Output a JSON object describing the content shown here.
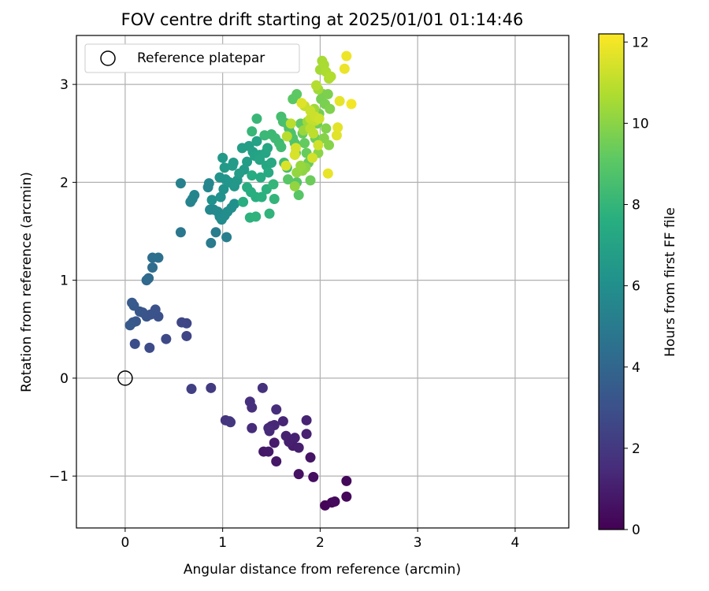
{
  "chart_data": {
    "type": "scatter",
    "title": "FOV centre drift starting at 2025/01/01 01:14:46",
    "xlabel": "Angular distance from reference (arcmin)",
    "ylabel": "Rotation from reference (arcmin)",
    "xlim": [
      -0.5,
      4.55
    ],
    "ylim": [
      -1.53,
      3.5
    ],
    "xticks": [
      0,
      1,
      2,
      3,
      4
    ],
    "xtick_labels": [
      "0",
      "1",
      "2",
      "3",
      "4"
    ],
    "yticks": [
      -1,
      0,
      1,
      2,
      3
    ],
    "ytick_labels": [
      "−1",
      "0",
      "1",
      "2",
      "3"
    ],
    "grid": true,
    "legend": {
      "position": "top-left",
      "entries": [
        "Reference platepar"
      ]
    },
    "reference_point": {
      "x": 0,
      "y": 0,
      "marker": "open-circle"
    },
    "colorbar": {
      "label": "Hours from first FF file",
      "range": [
        0,
        12.2
      ],
      "ticks": [
        0,
        2,
        4,
        6,
        8,
        10,
        12
      ],
      "tick_labels": [
        "0",
        "2",
        "4",
        "6",
        "8",
        "10",
        "12"
      ],
      "colormap": "viridis"
    },
    "points": [
      {
        "x": 2.05,
        "y": -1.3,
        "t": 0.1
      },
      {
        "x": 2.12,
        "y": -1.27,
        "t": 0.2
      },
      {
        "x": 2.15,
        "y": -1.26,
        "t": 0.3
      },
      {
        "x": 2.27,
        "y": -1.21,
        "t": 0.2
      },
      {
        "x": 2.27,
        "y": -1.05,
        "t": 0.25
      },
      {
        "x": 1.93,
        "y": -1.01,
        "t": 0.45
      },
      {
        "x": 1.78,
        "y": -0.98,
        "t": 0.55
      },
      {
        "x": 1.9,
        "y": -0.81,
        "t": 0.65
      },
      {
        "x": 1.55,
        "y": -0.85,
        "t": 0.75
      },
      {
        "x": 1.42,
        "y": -0.75,
        "t": 0.8
      },
      {
        "x": 1.47,
        "y": -0.75,
        "t": 0.85
      },
      {
        "x": 1.53,
        "y": -0.66,
        "t": 0.9
      },
      {
        "x": 1.72,
        "y": -0.69,
        "t": 0.95
      },
      {
        "x": 1.78,
        "y": -0.71,
        "t": 1.0
      },
      {
        "x": 1.68,
        "y": -0.65,
        "t": 1.05
      },
      {
        "x": 1.65,
        "y": -0.59,
        "t": 1.1
      },
      {
        "x": 1.74,
        "y": -0.61,
        "t": 1.12
      },
      {
        "x": 1.86,
        "y": -0.57,
        "t": 1.15
      },
      {
        "x": 1.86,
        "y": -0.43,
        "t": 1.2
      },
      {
        "x": 1.62,
        "y": -0.44,
        "t": 1.25
      },
      {
        "x": 1.5,
        "y": -0.49,
        "t": 1.3
      },
      {
        "x": 1.53,
        "y": -0.48,
        "t": 1.35
      },
      {
        "x": 1.47,
        "y": -0.51,
        "t": 1.4
      },
      {
        "x": 1.48,
        "y": -0.54,
        "t": 1.45
      },
      {
        "x": 1.3,
        "y": -0.51,
        "t": 1.5
      },
      {
        "x": 1.55,
        "y": -0.32,
        "t": 1.55
      },
      {
        "x": 1.28,
        "y": -0.24,
        "t": 1.6
      },
      {
        "x": 1.3,
        "y": -0.3,
        "t": 1.65
      },
      {
        "x": 1.41,
        "y": -0.1,
        "t": 1.7
      },
      {
        "x": 1.03,
        "y": -0.43,
        "t": 1.8
      },
      {
        "x": 1.07,
        "y": -0.44,
        "t": 1.85
      },
      {
        "x": 1.08,
        "y": -0.45,
        "t": 1.9
      },
      {
        "x": 0.88,
        "y": -0.1,
        "t": 2.1
      },
      {
        "x": 0.68,
        "y": -0.11,
        "t": 2.3
      },
      {
        "x": 0.63,
        "y": 0.43,
        "t": 2.5
      },
      {
        "x": 0.63,
        "y": 0.56,
        "t": 2.55
      },
      {
        "x": 0.58,
        "y": 0.57,
        "t": 2.6
      },
      {
        "x": 0.42,
        "y": 0.4,
        "t": 2.7
      },
      {
        "x": 0.25,
        "y": 0.31,
        "t": 2.8
      },
      {
        "x": 0.1,
        "y": 0.35,
        "t": 2.9
      },
      {
        "x": 0.34,
        "y": 0.63,
        "t": 3.0
      },
      {
        "x": 0.31,
        "y": 0.7,
        "t": 3.05
      },
      {
        "x": 0.26,
        "y": 0.65,
        "t": 3.1
      },
      {
        "x": 0.22,
        "y": 0.63,
        "t": 3.15
      },
      {
        "x": 0.18,
        "y": 0.67,
        "t": 3.2
      },
      {
        "x": 0.15,
        "y": 0.68,
        "t": 3.25
      },
      {
        "x": 0.11,
        "y": 0.58,
        "t": 3.3
      },
      {
        "x": 0.08,
        "y": 0.57,
        "t": 3.35
      },
      {
        "x": 0.05,
        "y": 0.54,
        "t": 3.4
      },
      {
        "x": 0.09,
        "y": 0.74,
        "t": 3.45
      },
      {
        "x": 0.07,
        "y": 0.77,
        "t": 3.5
      },
      {
        "x": 0.22,
        "y": 1.0,
        "t": 4.1
      },
      {
        "x": 0.24,
        "y": 1.02,
        "t": 4.2
      },
      {
        "x": 0.28,
        "y": 1.13,
        "t": 4.3
      },
      {
        "x": 0.28,
        "y": 1.23,
        "t": 4.4
      },
      {
        "x": 0.34,
        "y": 1.23,
        "t": 4.5
      },
      {
        "x": 0.57,
        "y": 1.49,
        "t": 4.8
      },
      {
        "x": 0.88,
        "y": 1.38,
        "t": 5.0
      },
      {
        "x": 0.93,
        "y": 1.49,
        "t": 5.1
      },
      {
        "x": 1.04,
        "y": 1.44,
        "t": 5.2
      },
      {
        "x": 0.57,
        "y": 1.99,
        "t": 5.3
      },
      {
        "x": 0.67,
        "y": 1.8,
        "t": 5.4
      },
      {
        "x": 0.69,
        "y": 1.83,
        "t": 5.45
      },
      {
        "x": 0.71,
        "y": 1.87,
        "t": 5.5
      },
      {
        "x": 0.85,
        "y": 1.95,
        "t": 5.55
      },
      {
        "x": 0.86,
        "y": 1.99,
        "t": 5.6
      },
      {
        "x": 0.87,
        "y": 1.72,
        "t": 5.65
      },
      {
        "x": 0.91,
        "y": 1.72,
        "t": 5.7
      },
      {
        "x": 0.95,
        "y": 1.7,
        "t": 5.75
      },
      {
        "x": 0.97,
        "y": 1.65,
        "t": 5.8
      },
      {
        "x": 0.99,
        "y": 1.62,
        "t": 5.85
      },
      {
        "x": 1.02,
        "y": 1.66,
        "t": 5.9
      },
      {
        "x": 1.05,
        "y": 1.7,
        "t": 5.95
      },
      {
        "x": 1.09,
        "y": 1.74,
        "t": 6.0
      },
      {
        "x": 1.12,
        "y": 1.78,
        "t": 6.05
      },
      {
        "x": 0.89,
        "y": 1.82,
        "t": 6.1
      },
      {
        "x": 0.98,
        "y": 1.85,
        "t": 6.15
      },
      {
        "x": 1.01,
        "y": 1.93,
        "t": 6.2
      },
      {
        "x": 0.97,
        "y": 2.05,
        "t": 6.25
      },
      {
        "x": 1.03,
        "y": 2.03,
        "t": 6.3
      },
      {
        "x": 1.07,
        "y": 2.0,
        "t": 6.35
      },
      {
        "x": 1.12,
        "y": 1.96,
        "t": 6.4
      },
      {
        "x": 1.15,
        "y": 2.02,
        "t": 6.45
      },
      {
        "x": 1.0,
        "y": 2.25,
        "t": 6.5
      },
      {
        "x": 1.02,
        "y": 2.15,
        "t": 6.55
      },
      {
        "x": 1.1,
        "y": 2.17,
        "t": 6.6
      },
      {
        "x": 1.11,
        "y": 2.2,
        "t": 6.62
      },
      {
        "x": 1.22,
        "y": 2.13,
        "t": 6.65
      },
      {
        "x": 1.17,
        "y": 2.09,
        "t": 6.7
      },
      {
        "x": 1.25,
        "y": 2.21,
        "t": 6.75
      },
      {
        "x": 1.2,
        "y": 2.35,
        "t": 6.8
      },
      {
        "x": 1.27,
        "y": 2.37,
        "t": 6.85
      },
      {
        "x": 1.31,
        "y": 2.31,
        "t": 6.9
      },
      {
        "x": 1.35,
        "y": 2.42,
        "t": 6.95
      },
      {
        "x": 1.33,
        "y": 2.27,
        "t": 7.0
      },
      {
        "x": 1.38,
        "y": 2.28,
        "t": 7.05
      },
      {
        "x": 1.38,
        "y": 2.23,
        "t": 7.1
      },
      {
        "x": 1.44,
        "y": 2.3,
        "t": 7.15
      },
      {
        "x": 1.46,
        "y": 2.35,
        "t": 7.2
      },
      {
        "x": 1.45,
        "y": 2.17,
        "t": 7.25
      },
      {
        "x": 1.5,
        "y": 2.2,
        "t": 7.3
      },
      {
        "x": 1.47,
        "y": 2.1,
        "t": 7.35
      },
      {
        "x": 1.39,
        "y": 2.05,
        "t": 7.4
      },
      {
        "x": 1.3,
        "y": 2.07,
        "t": 7.45
      },
      {
        "x": 1.25,
        "y": 1.95,
        "t": 7.5
      },
      {
        "x": 1.29,
        "y": 1.9,
        "t": 7.55
      },
      {
        "x": 1.21,
        "y": 1.8,
        "t": 7.6
      },
      {
        "x": 1.34,
        "y": 1.85,
        "t": 7.65
      },
      {
        "x": 1.4,
        "y": 1.85,
        "t": 7.7
      },
      {
        "x": 1.45,
        "y": 1.93,
        "t": 7.75
      },
      {
        "x": 1.28,
        "y": 1.64,
        "t": 7.8
      },
      {
        "x": 1.34,
        "y": 1.65,
        "t": 7.85
      },
      {
        "x": 1.48,
        "y": 1.68,
        "t": 7.9
      },
      {
        "x": 1.53,
        "y": 1.83,
        "t": 7.95
      },
      {
        "x": 1.52,
        "y": 1.98,
        "t": 8.0
      },
      {
        "x": 1.3,
        "y": 2.52,
        "t": 8.05
      },
      {
        "x": 1.35,
        "y": 2.65,
        "t": 8.1
      },
      {
        "x": 1.43,
        "y": 2.48,
        "t": 8.15
      },
      {
        "x": 1.5,
        "y": 2.49,
        "t": 8.2
      },
      {
        "x": 1.54,
        "y": 2.45,
        "t": 8.25
      },
      {
        "x": 1.58,
        "y": 2.4,
        "t": 8.3
      },
      {
        "x": 1.6,
        "y": 2.36,
        "t": 8.35
      },
      {
        "x": 1.63,
        "y": 2.2,
        "t": 8.4
      },
      {
        "x": 1.66,
        "y": 2.15,
        "t": 8.45
      },
      {
        "x": 1.6,
        "y": 2.67,
        "t": 8.5
      },
      {
        "x": 1.62,
        "y": 2.62,
        "t": 8.55
      },
      {
        "x": 1.66,
        "y": 2.6,
        "t": 8.6
      },
      {
        "x": 1.68,
        "y": 2.55,
        "t": 8.65
      },
      {
        "x": 1.7,
        "y": 2.5,
        "t": 8.7
      },
      {
        "x": 1.72,
        "y": 2.45,
        "t": 8.75
      },
      {
        "x": 1.74,
        "y": 2.4,
        "t": 8.8
      },
      {
        "x": 1.75,
        "y": 2.3,
        "t": 8.85
      },
      {
        "x": 1.76,
        "y": 2.0,
        "t": 8.9
      },
      {
        "x": 1.78,
        "y": 1.87,
        "t": 8.95
      },
      {
        "x": 1.67,
        "y": 2.03,
        "t": 9.0
      },
      {
        "x": 1.72,
        "y": 2.85,
        "t": 9.05
      },
      {
        "x": 1.76,
        "y": 2.9,
        "t": 9.1
      },
      {
        "x": 1.8,
        "y": 2.6,
        "t": 9.15
      },
      {
        "x": 1.82,
        "y": 2.5,
        "t": 9.2
      },
      {
        "x": 1.84,
        "y": 2.4,
        "t": 9.25
      },
      {
        "x": 1.86,
        "y": 2.3,
        "t": 9.3
      },
      {
        "x": 1.88,
        "y": 2.2,
        "t": 9.35
      },
      {
        "x": 1.9,
        "y": 2.02,
        "t": 9.4
      },
      {
        "x": 1.95,
        "y": 2.45,
        "t": 9.45
      },
      {
        "x": 1.97,
        "y": 2.6,
        "t": 9.5
      },
      {
        "x": 1.99,
        "y": 2.7,
        "t": 9.55
      },
      {
        "x": 2.01,
        "y": 2.85,
        "t": 9.6
      },
      {
        "x": 2.03,
        "y": 2.9,
        "t": 9.65
      },
      {
        "x": 2.05,
        "y": 2.8,
        "t": 9.7
      },
      {
        "x": 2.08,
        "y": 2.9,
        "t": 9.75
      },
      {
        "x": 2.1,
        "y": 2.75,
        "t": 9.8
      },
      {
        "x": 2.06,
        "y": 2.55,
        "t": 9.85
      },
      {
        "x": 2.04,
        "y": 2.45,
        "t": 9.9
      },
      {
        "x": 2.09,
        "y": 2.38,
        "t": 9.95
      },
      {
        "x": 1.98,
        "y": 2.3,
        "t": 10.0
      },
      {
        "x": 1.85,
        "y": 2.15,
        "t": 10.05
      },
      {
        "x": 1.82,
        "y": 2.12,
        "t": 10.1
      },
      {
        "x": 1.74,
        "y": 1.96,
        "t": 10.15
      },
      {
        "x": 1.76,
        "y": 2.1,
        "t": 10.2
      },
      {
        "x": 1.8,
        "y": 2.17,
        "t": 10.25
      },
      {
        "x": 1.83,
        "y": 2.53,
        "t": 10.3
      },
      {
        "x": 1.87,
        "y": 2.62,
        "t": 10.35
      },
      {
        "x": 1.94,
        "y": 2.75,
        "t": 10.4
      },
      {
        "x": 1.98,
        "y": 2.95,
        "t": 10.45
      },
      {
        "x": 2.0,
        "y": 3.15,
        "t": 10.5
      },
      {
        "x": 2.02,
        "y": 3.24,
        "t": 10.55
      },
      {
        "x": 2.04,
        "y": 3.2,
        "t": 10.6
      },
      {
        "x": 2.06,
        "y": 3.13,
        "t": 10.65
      },
      {
        "x": 2.09,
        "y": 3.06,
        "t": 10.7
      },
      {
        "x": 2.11,
        "y": 3.08,
        "t": 10.75
      },
      {
        "x": 1.96,
        "y": 2.99,
        "t": 10.8
      },
      {
        "x": 1.66,
        "y": 2.47,
        "t": 10.85
      },
      {
        "x": 1.7,
        "y": 2.6,
        "t": 10.9
      },
      {
        "x": 1.9,
        "y": 2.55,
        "t": 10.95
      },
      {
        "x": 1.93,
        "y": 2.5,
        "t": 11.0
      },
      {
        "x": 1.95,
        "y": 2.63,
        "t": 11.05
      },
      {
        "x": 1.9,
        "y": 2.65,
        "t": 11.1
      },
      {
        "x": 1.84,
        "y": 2.78,
        "t": 11.15
      },
      {
        "x": 1.9,
        "y": 2.73,
        "t": 11.2
      },
      {
        "x": 1.95,
        "y": 2.67,
        "t": 11.25
      },
      {
        "x": 1.99,
        "y": 2.65,
        "t": 11.3
      },
      {
        "x": 1.98,
        "y": 2.38,
        "t": 11.35
      },
      {
        "x": 1.92,
        "y": 2.25,
        "t": 11.4
      },
      {
        "x": 1.75,
        "y": 2.35,
        "t": 11.45
      },
      {
        "x": 1.74,
        "y": 2.28,
        "t": 11.5
      },
      {
        "x": 1.65,
        "y": 2.17,
        "t": 11.55
      },
      {
        "x": 1.81,
        "y": 2.81,
        "t": 11.6
      },
      {
        "x": 2.17,
        "y": 2.48,
        "t": 11.65
      },
      {
        "x": 2.18,
        "y": 2.56,
        "t": 11.7
      },
      {
        "x": 2.2,
        "y": 2.83,
        "t": 11.75
      },
      {
        "x": 2.08,
        "y": 2.09,
        "t": 11.8
      },
      {
        "x": 2.25,
        "y": 3.16,
        "t": 11.85
      },
      {
        "x": 2.27,
        "y": 3.29,
        "t": 11.9
      },
      {
        "x": 2.32,
        "y": 2.8,
        "t": 12.0
      }
    ]
  }
}
